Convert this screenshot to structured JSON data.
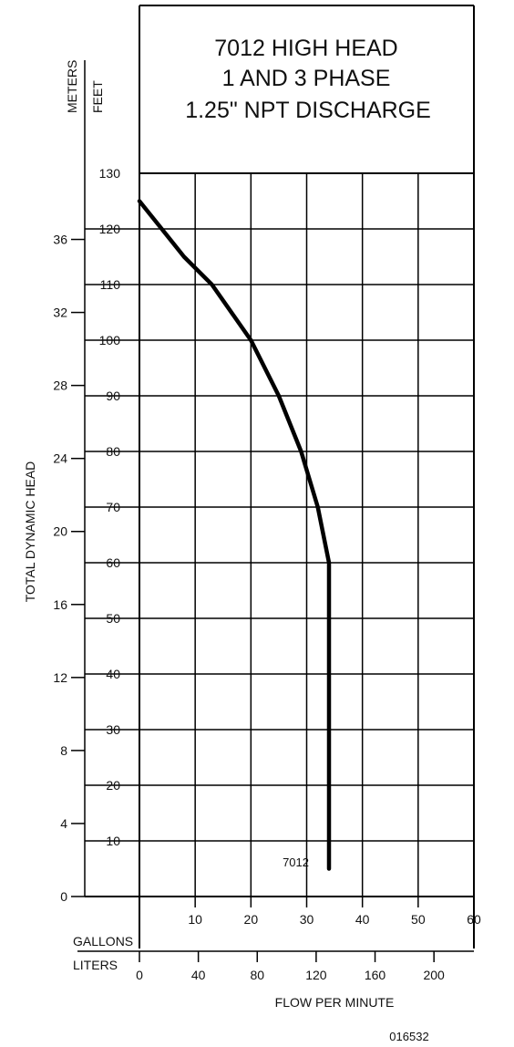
{
  "chart_data": {
    "type": "line",
    "title_lines": [
      "7012 HIGH HEAD",
      "1 AND 3 PHASE",
      "1.25\" NPT DISCHARGE"
    ],
    "ylabel": "TOTAL DYNAMIC HEAD",
    "xlabel": "FLOW PER MINUTE",
    "y_unit_labels": {
      "meters": "METERS",
      "feet": "FEET"
    },
    "x_unit_labels": {
      "gallons": "GALLONS",
      "liters": "LITERS"
    },
    "feet_ticks": [
      10,
      20,
      30,
      40,
      50,
      60,
      70,
      80,
      90,
      100,
      110,
      120,
      130
    ],
    "meters_ticks": [
      0,
      4,
      8,
      12,
      16,
      20,
      24,
      28,
      32,
      36
    ],
    "gallons_ticks": [
      10,
      20,
      30,
      40,
      50,
      60
    ],
    "liters_ticks": [
      0,
      40,
      80,
      120,
      160,
      200
    ],
    "ylim_feet": [
      0,
      130
    ],
    "xlim_gpm": [
      0,
      60
    ],
    "grid": true,
    "series": [
      {
        "name": "7012",
        "x": [
          0,
          4,
          8,
          13,
          20,
          25,
          29,
          32,
          34,
          34
        ],
        "y": [
          125,
          120,
          115,
          110,
          100,
          90,
          80,
          70,
          60,
          5
        ]
      }
    ],
    "code": "016532"
  }
}
